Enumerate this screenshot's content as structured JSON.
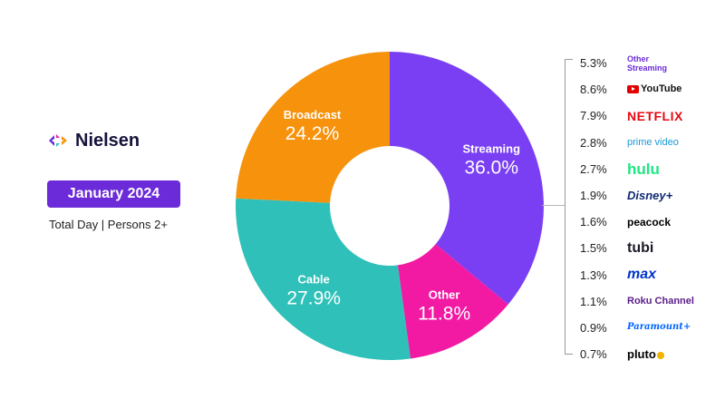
{
  "brand": {
    "name": "Nielsen",
    "icon": "nielsen-logo-icon"
  },
  "badge": {
    "label": "January 2024",
    "color": "#6b2bd9"
  },
  "subtitle": "Total Day | Persons 2+",
  "chart_data": {
    "type": "pie",
    "donut": true,
    "title": "",
    "slices": [
      {
        "label": "Streaming",
        "value": 36.0,
        "display": "36.0%",
        "color": "#7a3ff2"
      },
      {
        "label": "Other",
        "value": 11.8,
        "display": "11.8%",
        "color": "#f21aa3"
      },
      {
        "label": "Cable",
        "value": 27.9,
        "display": "27.9%",
        "color": "#2fc1b9"
      },
      {
        "label": "Broadcast",
        "value": 24.2,
        "display": "24.2%",
        "color": "#f7920c"
      }
    ],
    "streaming_breakdown": [
      {
        "label": "Other Streaming",
        "value": 5.3,
        "display": "5.3%"
      },
      {
        "label": "YouTube",
        "value": 8.6,
        "display": "8.6%"
      },
      {
        "label": "NETFLIX",
        "value": 7.9,
        "display": "7.9%"
      },
      {
        "label": "prime video",
        "value": 2.8,
        "display": "2.8%"
      },
      {
        "label": "hulu",
        "value": 2.7,
        "display": "2.7%"
      },
      {
        "label": "Disney+",
        "value": 1.9,
        "display": "1.9%"
      },
      {
        "label": "peacock",
        "value": 1.6,
        "display": "1.6%"
      },
      {
        "label": "tubi",
        "value": 1.5,
        "display": "1.5%"
      },
      {
        "label": "max",
        "value": 1.3,
        "display": "1.3%"
      },
      {
        "label": "Roku Channel",
        "value": 1.1,
        "display": "1.1%"
      },
      {
        "label": "Paramount+",
        "value": 0.9,
        "display": "0.9%"
      },
      {
        "label": "pluto",
        "value": 0.7,
        "display": "0.7%"
      }
    ]
  }
}
